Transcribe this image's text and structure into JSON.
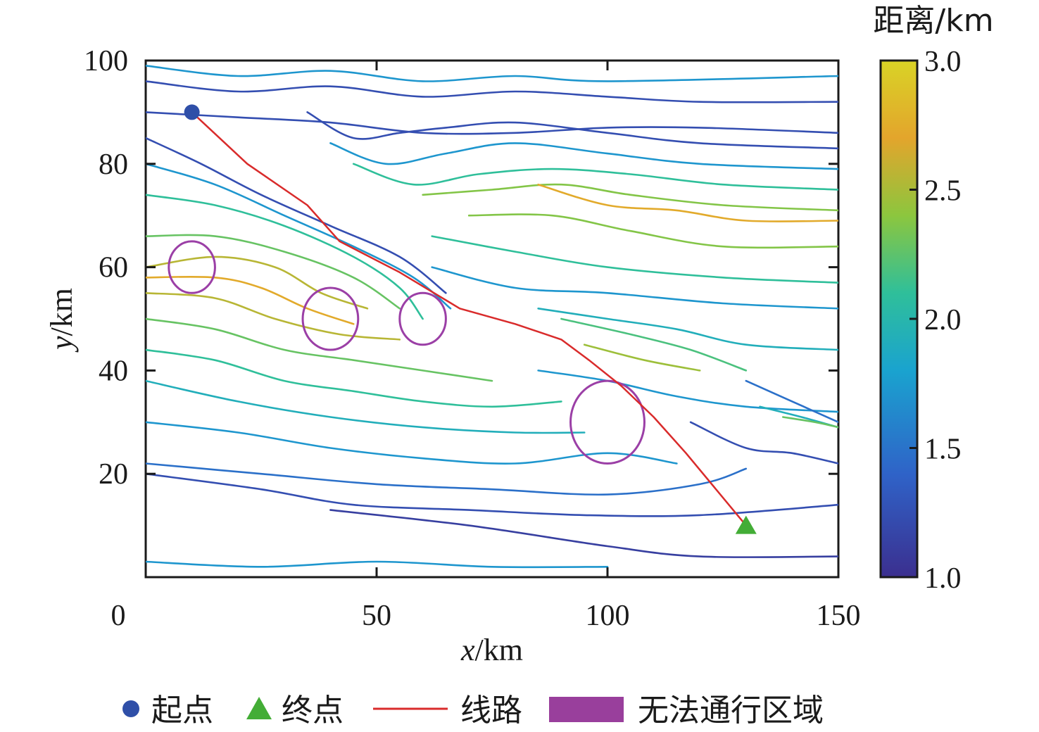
{
  "chart_data": {
    "type": "contour",
    "xlabel_var": "x",
    "xlabel_unit": "/km",
    "ylabel_var": "y",
    "ylabel_unit": "/km",
    "xlim": [
      0,
      150
    ],
    "ylim": [
      0,
      100
    ],
    "xticks": [
      0,
      50,
      100,
      150
    ],
    "yticks": [
      20,
      40,
      60,
      80,
      100
    ],
    "colorbar": {
      "title": "距离/km",
      "range": [
        1.0,
        3.0
      ],
      "ticks": [
        "1.0",
        "1.5",
        "2.0",
        "2.5",
        "3.0"
      ],
      "colors": [
        "#3b2f8f",
        "#2f63c8",
        "#1aa3cf",
        "#2fbf9a",
        "#8cc63e",
        "#e3a52c",
        "#d9d326"
      ]
    },
    "start_point": {
      "x": 10,
      "y": 90
    },
    "end_point": {
      "x": 130,
      "y": 10
    },
    "route": [
      [
        10,
        90
      ],
      [
        22,
        80
      ],
      [
        35,
        72
      ],
      [
        42,
        65
      ],
      [
        55,
        59
      ],
      [
        68,
        52
      ],
      [
        80,
        49
      ],
      [
        90,
        46
      ],
      [
        96,
        42
      ],
      [
        103,
        37
      ],
      [
        110,
        31
      ],
      [
        117,
        24
      ],
      [
        130,
        10
      ]
    ],
    "impassable_zones": [
      {
        "cx": 10,
        "cy": 60,
        "rx": 5,
        "ry": 5
      },
      {
        "cx": 40,
        "cy": 50,
        "rx": 6,
        "ry": 6
      },
      {
        "cx": 60,
        "cy": 50,
        "rx": 5,
        "ry": 5
      },
      {
        "cx": 100,
        "cy": 30,
        "rx": 8,
        "ry": 8
      }
    ],
    "contours": [
      {
        "level": 1.2,
        "points": [
          [
            0,
            96
          ],
          [
            20,
            94
          ],
          [
            40,
            95
          ],
          [
            60,
            93
          ],
          [
            80,
            94
          ],
          [
            100,
            93
          ],
          [
            120,
            92
          ],
          [
            150,
            92
          ]
        ]
      },
      {
        "level": 1.2,
        "points": [
          [
            0,
            90
          ],
          [
            20,
            89
          ],
          [
            40,
            88
          ],
          [
            60,
            86
          ],
          [
            80,
            86
          ],
          [
            100,
            87
          ],
          [
            120,
            87
          ],
          [
            150,
            86
          ]
        ]
      },
      {
        "level": 1.6,
        "points": [
          [
            0,
            99
          ],
          [
            20,
            97
          ],
          [
            40,
            98
          ],
          [
            60,
            96
          ],
          [
            80,
            97
          ],
          [
            100,
            96
          ],
          [
            150,
            97
          ]
        ]
      },
      {
        "level": 1.2,
        "points": [
          [
            0,
            85
          ],
          [
            12,
            80
          ],
          [
            25,
            74
          ],
          [
            40,
            68
          ],
          [
            55,
            62
          ],
          [
            65,
            55
          ]
        ]
      },
      {
        "level": 1.6,
        "points": [
          [
            0,
            80
          ],
          [
            15,
            76
          ],
          [
            30,
            70
          ],
          [
            45,
            64
          ],
          [
            58,
            58
          ],
          [
            66,
            52
          ]
        ]
      },
      {
        "level": 2.0,
        "points": [
          [
            0,
            74
          ],
          [
            15,
            72
          ],
          [
            30,
            68
          ],
          [
            45,
            62
          ],
          [
            55,
            56
          ],
          [
            60,
            50
          ]
        ]
      },
      {
        "level": 2.2,
        "points": [
          [
            0,
            66
          ],
          [
            15,
            66
          ],
          [
            30,
            63
          ],
          [
            45,
            58
          ],
          [
            55,
            52
          ]
        ]
      },
      {
        "level": 2.5,
        "points": [
          [
            0,
            60
          ],
          [
            15,
            62
          ],
          [
            28,
            60
          ],
          [
            38,
            55
          ],
          [
            48,
            52
          ]
        ]
      },
      {
        "level": 2.7,
        "points": [
          [
            0,
            58
          ],
          [
            15,
            58
          ],
          [
            25,
            56
          ],
          [
            35,
            52
          ],
          [
            45,
            49
          ]
        ]
      },
      {
        "level": 2.5,
        "points": [
          [
            0,
            55
          ],
          [
            15,
            54
          ],
          [
            28,
            50
          ],
          [
            42,
            47
          ],
          [
            55,
            46
          ]
        ]
      },
      {
        "level": 2.2,
        "points": [
          [
            0,
            50
          ],
          [
            15,
            48
          ],
          [
            30,
            44
          ],
          [
            45,
            42
          ],
          [
            60,
            40
          ],
          [
            75,
            38
          ]
        ]
      },
      {
        "level": 2.0,
        "points": [
          [
            0,
            44
          ],
          [
            15,
            42
          ],
          [
            30,
            38
          ],
          [
            45,
            36
          ],
          [
            60,
            34
          ],
          [
            75,
            33
          ],
          [
            90,
            34
          ]
        ]
      },
      {
        "level": 1.8,
        "points": [
          [
            0,
            38
          ],
          [
            20,
            34
          ],
          [
            40,
            31
          ],
          [
            60,
            29
          ],
          [
            80,
            28
          ],
          [
            95,
            28
          ]
        ]
      },
      {
        "level": 1.6,
        "points": [
          [
            0,
            30
          ],
          [
            20,
            28
          ],
          [
            40,
            25
          ],
          [
            60,
            23
          ],
          [
            80,
            22
          ],
          [
            100,
            24
          ],
          [
            115,
            22
          ]
        ]
      },
      {
        "level": 1.4,
        "points": [
          [
            0,
            22
          ],
          [
            25,
            20
          ],
          [
            50,
            18
          ],
          [
            75,
            17
          ],
          [
            100,
            16
          ],
          [
            120,
            18
          ],
          [
            130,
            21
          ]
        ]
      },
      {
        "level": 1.2,
        "points": [
          [
            0,
            20
          ],
          [
            25,
            17
          ],
          [
            45,
            14
          ],
          [
            70,
            13
          ],
          [
            95,
            12
          ],
          [
            120,
            12
          ],
          [
            150,
            14
          ]
        ]
      },
      {
        "level": 1.1,
        "points": [
          [
            40,
            13
          ],
          [
            70,
            10
          ],
          [
            100,
            6
          ],
          [
            120,
            4
          ],
          [
            150,
            4
          ]
        ]
      },
      {
        "level": 1.6,
        "points": [
          [
            0,
            3
          ],
          [
            25,
            2
          ],
          [
            50,
            3
          ],
          [
            75,
            2
          ],
          [
            100,
            2
          ]
        ]
      },
      {
        "level": 1.2,
        "points": [
          [
            35,
            90
          ],
          [
            45,
            85
          ],
          [
            55,
            86
          ],
          [
            65,
            87
          ],
          [
            80,
            88
          ],
          [
            100,
            86
          ],
          [
            120,
            84
          ],
          [
            150,
            83
          ]
        ]
      },
      {
        "level": 1.6,
        "points": [
          [
            40,
            84
          ],
          [
            52,
            80
          ],
          [
            65,
            82
          ],
          [
            80,
            84
          ],
          [
            100,
            82
          ],
          [
            120,
            80
          ],
          [
            150,
            79
          ]
        ]
      },
      {
        "level": 2.0,
        "points": [
          [
            45,
            80
          ],
          [
            58,
            76
          ],
          [
            72,
            78
          ],
          [
            88,
            79
          ],
          [
            105,
            78
          ],
          [
            125,
            76
          ],
          [
            150,
            75
          ]
        ]
      },
      {
        "level": 2.3,
        "points": [
          [
            60,
            74
          ],
          [
            75,
            75
          ],
          [
            90,
            76
          ],
          [
            105,
            74
          ],
          [
            125,
            72
          ],
          [
            150,
            71
          ]
        ]
      },
      {
        "level": 2.7,
        "points": [
          [
            85,
            76
          ],
          [
            100,
            72
          ],
          [
            115,
            71
          ],
          [
            130,
            69
          ],
          [
            150,
            69
          ]
        ]
      },
      {
        "level": 2.3,
        "points": [
          [
            70,
            70
          ],
          [
            88,
            70
          ],
          [
            105,
            67
          ],
          [
            125,
            64
          ],
          [
            150,
            64
          ]
        ]
      },
      {
        "level": 2.0,
        "points": [
          [
            62,
            66
          ],
          [
            80,
            63
          ],
          [
            100,
            60
          ],
          [
            125,
            58
          ],
          [
            150,
            57
          ]
        ]
      },
      {
        "level": 1.6,
        "points": [
          [
            62,
            60
          ],
          [
            80,
            56
          ],
          [
            100,
            55
          ],
          [
            125,
            53
          ],
          [
            150,
            52
          ]
        ]
      },
      {
        "level": 1.8,
        "points": [
          [
            85,
            52
          ],
          [
            100,
            50
          ],
          [
            115,
            48
          ],
          [
            130,
            45
          ],
          [
            150,
            44
          ]
        ]
      },
      {
        "level": 2.1,
        "points": [
          [
            90,
            50
          ],
          [
            105,
            47
          ],
          [
            118,
            44
          ],
          [
            130,
            40
          ]
        ]
      },
      {
        "level": 2.4,
        "points": [
          [
            95,
            45
          ],
          [
            108,
            42
          ],
          [
            120,
            40
          ]
        ]
      },
      {
        "level": 1.6,
        "points": [
          [
            85,
            40
          ],
          [
            100,
            38
          ],
          [
            115,
            35
          ],
          [
            130,
            33
          ],
          [
            150,
            32
          ]
        ]
      },
      {
        "level": 1.4,
        "points": [
          [
            130,
            38
          ],
          [
            140,
            34
          ],
          [
            150,
            30
          ]
        ]
      },
      {
        "level": 1.8,
        "points": [
          [
            133,
            33
          ],
          [
            142,
            31
          ],
          [
            150,
            29
          ]
        ]
      },
      {
        "level": 2.2,
        "points": [
          [
            138,
            31
          ],
          [
            145,
            30
          ],
          [
            150,
            29
          ]
        ]
      },
      {
        "level": 1.2,
        "points": [
          [
            118,
            30
          ],
          [
            130,
            25
          ],
          [
            140,
            24
          ],
          [
            150,
            22
          ]
        ]
      }
    ]
  },
  "legend": {
    "items": [
      {
        "label": "起点",
        "marker": "circle",
        "color": "#2f4fa8"
      },
      {
        "label": "终点",
        "marker": "triangle",
        "color": "#43ad36"
      },
      {
        "label": "线路",
        "marker": "line",
        "color": "#d92b2b"
      },
      {
        "label": "无法通行区域",
        "marker": "rect",
        "color": "#993f9c"
      }
    ]
  },
  "colors": {
    "route": "#d92b2b",
    "zone": "#9b3fa6",
    "start": "#2f4fa8",
    "end": "#43ad36"
  }
}
